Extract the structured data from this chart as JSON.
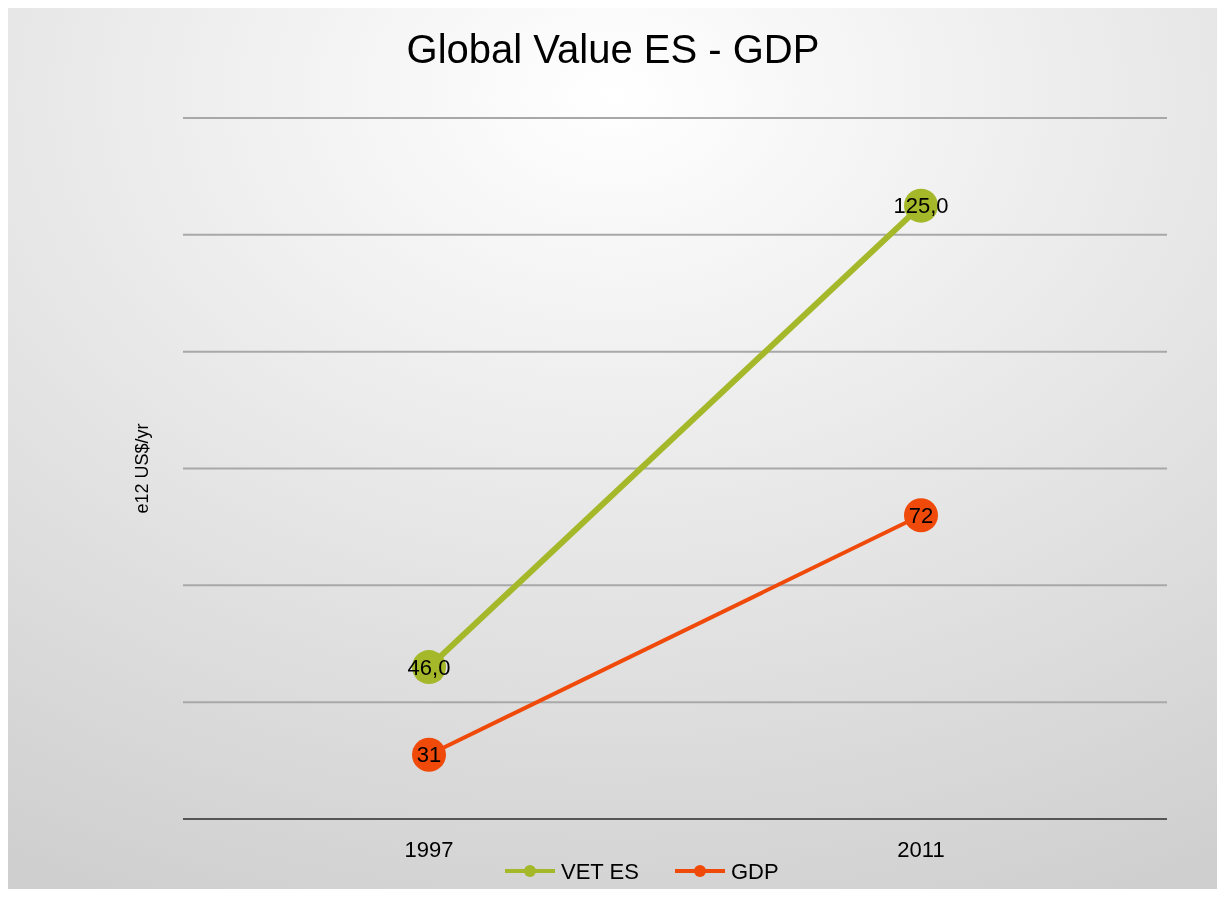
{
  "chart_data": {
    "type": "line",
    "title": "Global Value ES - GDP",
    "ylabel": "e12 US$/yr",
    "categories": [
      "1997",
      "2011"
    ],
    "series": [
      {
        "name": "VET  ES",
        "color": "#a5b82a",
        "values": [
          46,
          125
        ],
        "value_labels": [
          "46,0",
          "125,0"
        ]
      },
      {
        "name": "GDP",
        "color": "#f04a0a",
        "values": [
          31,
          72
        ],
        "value_labels": [
          "31",
          "72"
        ]
      }
    ],
    "ylim": [
      20,
      140
    ],
    "yticks": [
      {
        "value": 20,
        "label": null
      },
      {
        "value": 40,
        "label": null
      },
      {
        "value": 60,
        "label": null
      },
      {
        "value": 80,
        "label": null
      },
      {
        "value": 100,
        "label": null
      },
      {
        "value": 120,
        "label": null
      },
      {
        "value": 140,
        "label": null
      }
    ],
    "tick_labels": "x",
    "grid": "y",
    "legend": "bottom",
    "marker": "circle",
    "line_style": "solid"
  }
}
